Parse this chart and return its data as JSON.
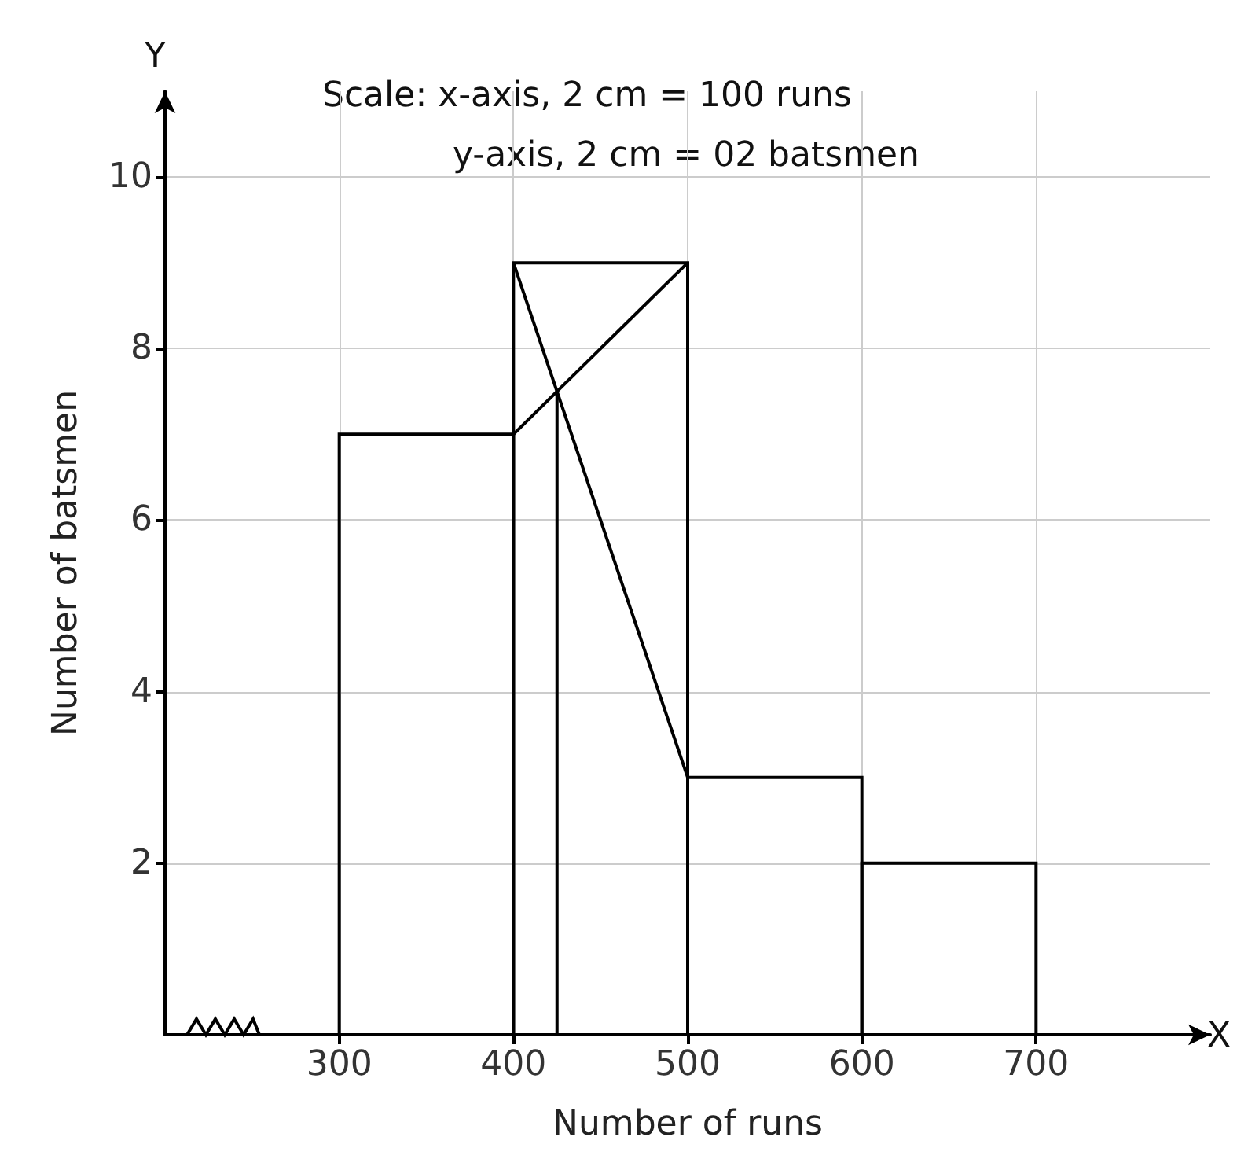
{
  "chart_data": {
    "type": "histogram",
    "xlabel": "Number of runs",
    "ylabel": "Number of batsmen",
    "bins": [
      300,
      400,
      500,
      600,
      700
    ],
    "values": [
      7,
      9,
      3,
      2
    ],
    "color": "#000000",
    "series": [
      {
        "type": "line",
        "x": [
          400,
          500
        ],
        "values": [
          7,
          9
        ],
        "color": "#000000"
      },
      {
        "type": "line",
        "x": [
          400,
          500
        ],
        "values": [
          9,
          3
        ],
        "color": "#000000"
      },
      {
        "type": "line",
        "x": [
          425,
          425
        ],
        "values": [
          7.5,
          0
        ],
        "color": "#000000"
      }
    ],
    "xlim": [
      200,
      800
    ],
    "xticks": [
      300,
      400,
      500,
      600,
      700
    ],
    "ylim": [
      0,
      11
    ],
    "yticks": [
      2,
      4,
      6,
      8,
      10
    ],
    "annotations": [
      "Y",
      "Scale: x-axis, 2 cm = 100 runs",
      "y-axis, 2 cm = 02 batsmen",
      "X"
    ],
    "grid": true,
    "marker": "none"
  }
}
